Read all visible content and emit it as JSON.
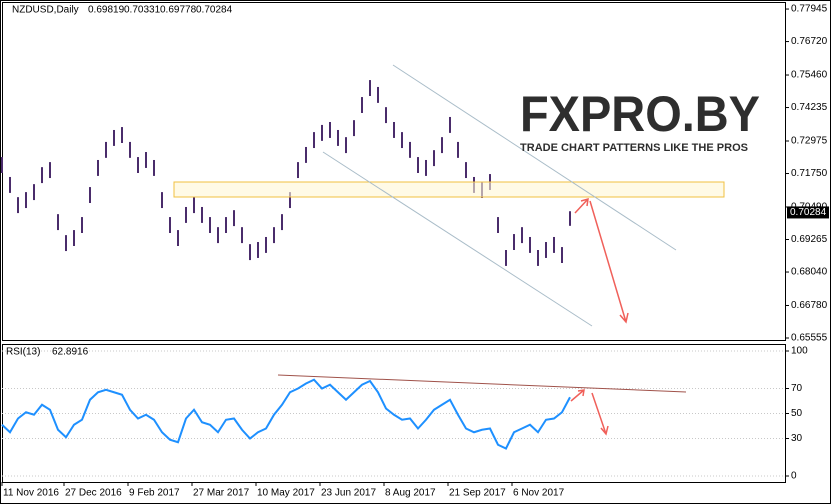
{
  "chart_data": [
    {
      "type": "ohlc",
      "title": "NZDUSD,Daily",
      "ohlc": [
        0.69819,
        0.70331,
        0.69778,
        0.70284
      ],
      "last_price": 0.70284,
      "color": "#4a2c6b",
      "xlim": [
        0,
        391.5
      ],
      "ylim": [
        0.6548,
        0.7821
      ],
      "yticks": [
        0.77945,
        {
          "value": 0.7672,
          "label": "0.76720"
        },
        {
          "value": 0.7546,
          "label": "0.75460"
        },
        0.74235,
        0.72975,
        {
          "value": 0.7175,
          "label": "0.71750"
        },
        {
          "value": 0.7049,
          "label": "0.70490"
        },
        0.69265,
        {
          "value": 0.6804,
          "label": "0.68040"
        },
        {
          "value": 0.6678,
          "label": "0.66780"
        },
        0.65555
      ],
      "x": [
        0,
        4,
        8,
        12,
        16,
        20,
        24,
        28,
        32,
        36,
        40,
        44,
        48,
        52,
        56,
        60,
        64,
        68,
        72,
        76,
        80,
        84,
        88,
        92,
        96,
        100,
        104,
        108,
        112,
        116,
        120,
        124,
        128,
        132,
        136,
        140,
        144,
        148,
        152,
        156,
        160,
        164,
        168,
        172,
        176,
        180,
        184,
        188,
        192,
        196,
        200,
        204,
        208,
        212,
        216,
        220,
        224,
        228,
        232,
        236,
        240,
        244,
        248,
        252,
        256,
        260,
        264,
        268,
        272,
        276,
        280,
        284
      ],
      "high": [
        0.7237,
        0.7162,
        0.7086,
        0.7105,
        0.7135,
        0.7199,
        0.7218,
        0.7022,
        0.6943,
        0.6962,
        0.7011,
        0.7124,
        0.7226,
        0.7294,
        0.7339,
        0.735,
        0.7294,
        0.7237,
        0.7256,
        0.7226,
        0.7105,
        0.7011,
        0.6962,
        0.7049,
        0.7086,
        0.7049,
        0.7011,
        0.6973,
        0.7011,
        0.7037,
        0.6973,
        0.6909,
        0.6917,
        0.6936,
        0.6973,
        0.7022,
        0.7105,
        0.7218,
        0.7275,
        0.7331,
        0.7358,
        0.7369,
        0.7339,
        0.7312,
        0.7376,
        0.7463,
        0.7527,
        0.7501,
        0.7425,
        0.7369,
        0.7331,
        0.7294,
        0.7237,
        0.7226,
        0.7263,
        0.7312,
        0.7388,
        0.7294,
        0.7218,
        0.7162,
        0.7143,
        0.7173,
        0.7011,
        0.6887,
        0.6947,
        0.6973,
        0.6936,
        0.6887,
        0.6917,
        0.6936,
        0.6898,
        0.7033
      ],
      "low": [
        0.7177,
        0.7102,
        0.7026,
        0.7045,
        0.7075,
        0.7139,
        0.7158,
        0.6962,
        0.6883,
        0.6902,
        0.6951,
        0.7064,
        0.7166,
        0.7234,
        0.7279,
        0.729,
        0.7234,
        0.7177,
        0.7196,
        0.7166,
        0.7045,
        0.6951,
        0.6902,
        0.6989,
        0.7026,
        0.6989,
        0.6951,
        0.6913,
        0.6951,
        0.6977,
        0.6913,
        0.6849,
        0.6857,
        0.6876,
        0.6913,
        0.6962,
        0.7045,
        0.7158,
        0.7215,
        0.7271,
        0.7298,
        0.7309,
        0.7279,
        0.7252,
        0.7316,
        0.7403,
        0.7467,
        0.7441,
        0.7365,
        0.7309,
        0.7271,
        0.7234,
        0.7177,
        0.7166,
        0.7203,
        0.7252,
        0.7328,
        0.7234,
        0.7158,
        0.7102,
        0.7083,
        0.7113,
        0.6951,
        0.6827,
        0.6887,
        0.6913,
        0.6876,
        0.6827,
        0.6857,
        0.6876,
        0.6838,
        0.6978
      ]
    },
    {
      "type": "line",
      "title": "RSI(13)",
      "last_value": 62.8916,
      "color": "#1e90ff",
      "xlim": [
        0,
        391.5
      ],
      "ylim": [
        -4.8,
        105.6
      ],
      "yticks": [
        100,
        70,
        50,
        30,
        0
      ],
      "grid": true,
      "xticks": [
        {
          "value": 0,
          "label": "11 Nov 2016"
        },
        {
          "value": 31,
          "label": "27 Dec 2016"
        },
        {
          "value": 63,
          "label": "9 Feb 2017"
        },
        {
          "value": 95,
          "label": "27 Mar 2017"
        },
        {
          "value": 127,
          "label": "10 May 2017"
        },
        {
          "value": 159,
          "label": "23 Jun 2017"
        },
        {
          "value": 191,
          "label": "8 Aug 2017"
        },
        {
          "value": 223,
          "label": "21 Sep 2017"
        },
        {
          "value": 255,
          "label": "6 Nov 2017"
        }
      ],
      "x": [
        0,
        4,
        8,
        12,
        16,
        20,
        24,
        28,
        32,
        36,
        40,
        44,
        48,
        52,
        56,
        60,
        64,
        68,
        72,
        76,
        80,
        84,
        88,
        92,
        96,
        100,
        104,
        108,
        112,
        116,
        120,
        124,
        128,
        132,
        136,
        140,
        144,
        148,
        152,
        156,
        160,
        164,
        168,
        172,
        176,
        180,
        184,
        188,
        192,
        196,
        200,
        204,
        208,
        212,
        216,
        220,
        224,
        228,
        232,
        236,
        240,
        244,
        248,
        252,
        256,
        260,
        264,
        268,
        272,
        276,
        280,
        284
      ],
      "values": [
        41,
        35,
        46,
        51,
        49,
        57,
        53,
        37,
        31,
        41,
        45,
        61,
        67,
        69,
        67,
        65,
        53,
        46,
        49,
        45,
        35,
        29,
        27,
        46,
        53,
        43,
        41,
        35,
        45,
        46,
        37,
        30,
        35,
        38,
        49,
        57,
        67,
        70,
        74,
        77,
        70,
        73,
        67,
        61,
        67,
        73,
        76,
        67,
        54,
        49,
        45,
        46,
        38,
        45,
        53,
        57,
        61,
        49,
        38,
        35,
        37,
        38,
        25,
        22,
        35,
        38,
        41,
        35,
        45,
        46,
        51,
        63
      ]
    }
  ],
  "watermark": {
    "title": "FXPRO.BY",
    "subtitle": "TRADE CHART PATTERNS LIKE THE PROS"
  }
}
